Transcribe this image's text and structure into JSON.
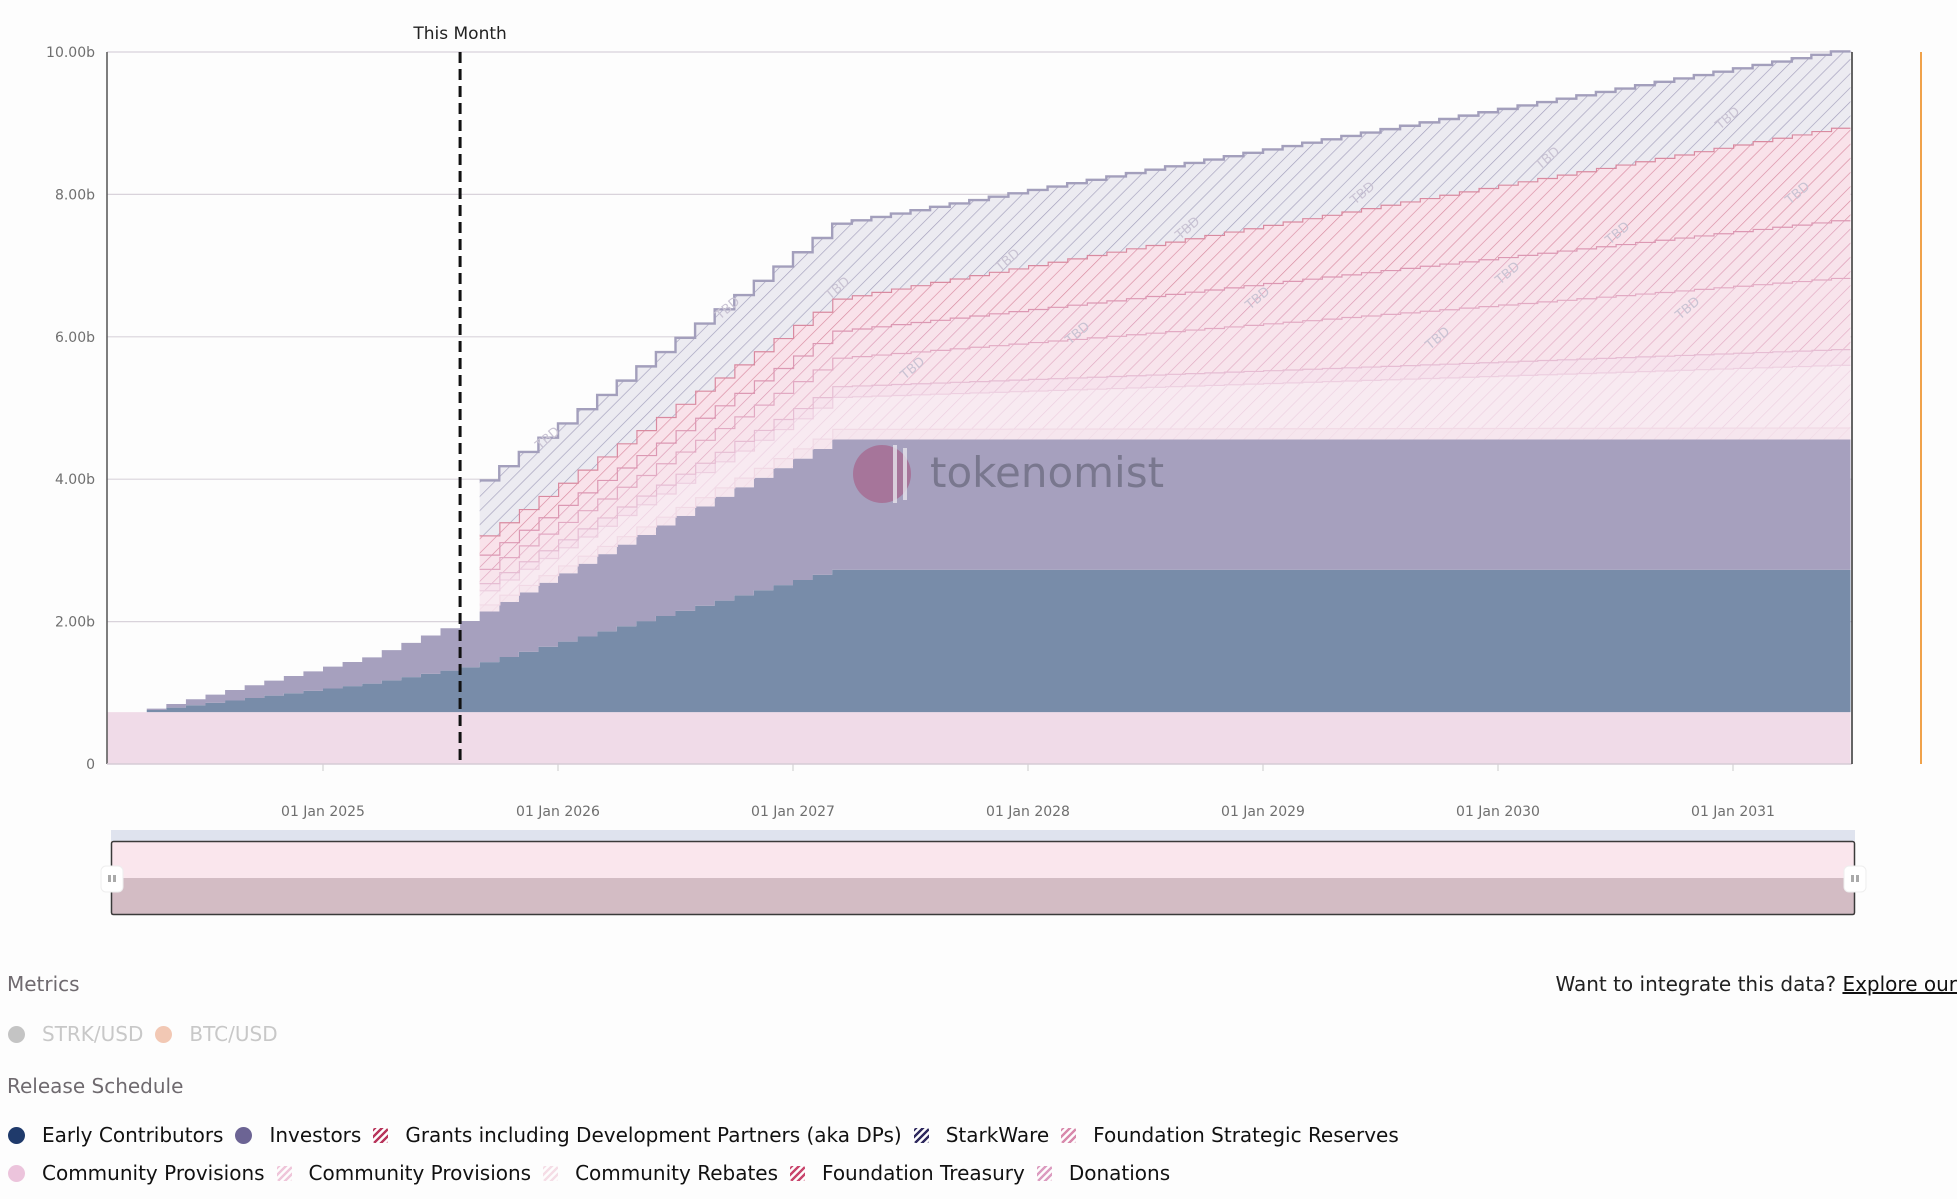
{
  "chart_data": {
    "type": "area",
    "stacked": true,
    "step": "monthly",
    "y_axis": {
      "ticks": [
        "0",
        "2.00b",
        "4.00b",
        "6.00b",
        "8.00b",
        "10.00b"
      ],
      "range": [
        0,
        10000000000
      ]
    },
    "x_axis": {
      "ticks": [
        "01 Jan 2025",
        "01 Jan 2026",
        "01 Jan 2027",
        "01 Jan 2028",
        "01 Jan 2029",
        "01 Jan 2030",
        "01 Jan 2031"
      ],
      "range": [
        "2024-02",
        "2031-06"
      ]
    },
    "grid": true,
    "marker": {
      "label": "This Month",
      "date": "2025-08"
    },
    "tbd_label": "TBD",
    "watermark": "tokenomist",
    "unit": "billion tokens (cumulative)",
    "series": [
      {
        "name": "Community Provisions",
        "color": "#f0dbe8",
        "hatched": false,
        "points": [
          [
            "2024-02",
            0.728
          ],
          [
            "2031-06",
            0.728
          ]
        ]
      },
      {
        "name": "Early Contributors",
        "color": "#788ca9",
        "hatched": false,
        "points": [
          [
            "2024-04",
            0.03
          ],
          [
            "2025-03",
            0.4
          ],
          [
            "2025-08",
            0.63
          ],
          [
            "2027-03",
            2.0
          ],
          [
            "2031-06",
            2.0
          ]
        ]
      },
      {
        "name": "Investors",
        "color": "#a6a0be",
        "hatched": false,
        "points": [
          [
            "2024-04",
            0.02
          ],
          [
            "2025-03",
            0.37
          ],
          [
            "2025-08",
            0.65
          ],
          [
            "2027-03",
            1.83
          ],
          [
            "2031-06",
            1.83
          ]
        ]
      },
      {
        "name": "Community Rebates",
        "color": "#f6e6ee",
        "line": "#f1d9e5",
        "hatched": true,
        "points": [
          [
            "2025-09",
            0.1
          ],
          [
            "2027-03",
            0.15
          ],
          [
            "2031-06",
            0.17
          ]
        ]
      },
      {
        "name": "Community Provisions",
        "color": "#f8eaf1",
        "line": "#edcfe0",
        "hatched": true,
        "points": [
          [
            "2025-09",
            0.2
          ],
          [
            "2027-03",
            0.45
          ],
          [
            "2031-06",
            0.88
          ]
        ]
      },
      {
        "name": "Donations",
        "color": "#f7e3ed",
        "line": "#e6bdd3",
        "hatched": true,
        "points": [
          [
            "2025-09",
            0.1
          ],
          [
            "2027-03",
            0.15
          ],
          [
            "2031-06",
            0.22
          ]
        ]
      },
      {
        "name": "Foundation Treasury",
        "color": "#f8e4ec",
        "line": "#e2aac3",
        "hatched": true,
        "points": [
          [
            "2025-09",
            0.2
          ],
          [
            "2027-03",
            0.4
          ],
          [
            "2031-06",
            1.0
          ]
        ]
      },
      {
        "name": "Foundation Strategic Reserves",
        "color": "#f8e3eb",
        "line": "#dc98b3",
        "hatched": true,
        "points": [
          [
            "2025-09",
            0.2
          ],
          [
            "2027-03",
            0.38
          ],
          [
            "2031-06",
            0.81
          ]
        ]
      },
      {
        "name": "Grants including Development Partners (aka DPs)",
        "color": "#f9e2ea",
        "line": "#d98aa0",
        "hatched": true,
        "points": [
          [
            "2025-09",
            0.27
          ],
          [
            "2027-03",
            0.45
          ],
          [
            "2031-06",
            1.3
          ]
        ]
      },
      {
        "name": "StarkWare",
        "color": "#ecebf1",
        "line": "#a39fbc",
        "hatched": true,
        "points": [
          [
            "2025-09",
            0.77
          ],
          [
            "2027-03",
            1.05
          ],
          [
            "2031-06",
            1.07
          ]
        ]
      }
    ]
  },
  "metrics": {
    "title": "Metrics",
    "items": [
      {
        "label": "STRK/USD",
        "color": "#c4c4c4"
      },
      {
        "label": "BTC/USD",
        "color": "#f2c8b4"
      }
    ]
  },
  "release": {
    "title": "Release Schedule",
    "row1": [
      {
        "label": "Early Contributors",
        "color": "#1f3a6b",
        "hatched": false
      },
      {
        "label": "Investors",
        "color": "#6c6494",
        "hatched": false
      },
      {
        "label": "Grants including Development Partners (aka DPs)",
        "color": "#b8365c",
        "hatched": true
      },
      {
        "label": "StarkWare",
        "color": "#2f2a5e",
        "hatched": true
      },
      {
        "label": "Foundation Strategic Reserves",
        "color": "#d88aac",
        "hatched": true
      }
    ],
    "row2": [
      {
        "label": "Community Provisions",
        "color": "#ecc4dc",
        "hatched": false
      },
      {
        "label": "Community Provisions",
        "color": "#efc6da",
        "hatched": true
      },
      {
        "label": "Community Rebates",
        "color": "#f5dde6",
        "hatched": true
      },
      {
        "label": "Foundation Treasury",
        "color": "#c9476e",
        "hatched": true
      },
      {
        "label": "Donations",
        "color": "#dc9cc0",
        "hatched": true
      }
    ]
  },
  "cta": {
    "text": "Want to integrate this data?",
    "link": "Explore our"
  }
}
